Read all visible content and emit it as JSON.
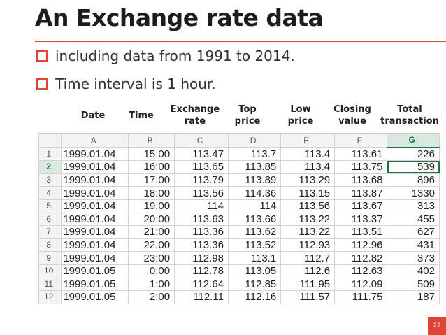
{
  "title": "An Exchange rate data",
  "bullets": [
    "including data from 1991 to 2014.",
    "Time interval is 1 hour."
  ],
  "column_headers": [
    {
      "label": "Date"
    },
    {
      "label": "Time"
    },
    {
      "label": "Exchange\nrate"
    },
    {
      "label": "Top\nprice"
    },
    {
      "label": "Low\nprice"
    },
    {
      "label": "Closing\nvalue"
    },
    {
      "label": "Total\ntransaction"
    }
  ],
  "sheet": {
    "column_letters": [
      "A",
      "B",
      "C",
      "D",
      "E",
      "F",
      "G"
    ],
    "selected_column": "G",
    "selected_row": 2,
    "rows": [
      {
        "n": "1",
        "cells": [
          "1999.01.04",
          "15:00",
          "113.47",
          "113.7",
          "113.4",
          "113.61",
          "226"
        ]
      },
      {
        "n": "2",
        "cells": [
          "1999.01.04",
          "16:00",
          "113.65",
          "113.85",
          "113.4",
          "113.75",
          "539"
        ]
      },
      {
        "n": "3",
        "cells": [
          "1999.01.04",
          "17:00",
          "113.79",
          "113.89",
          "113.29",
          "113.68",
          "896"
        ]
      },
      {
        "n": "4",
        "cells": [
          "1999.01.04",
          "18:00",
          "113.56",
          "114.36",
          "113.15",
          "113.87",
          "1330"
        ]
      },
      {
        "n": "5",
        "cells": [
          "1999.01.04",
          "19:00",
          "114",
          "114",
          "113.56",
          "113.67",
          "313"
        ]
      },
      {
        "n": "6",
        "cells": [
          "1999.01.04",
          "20:00",
          "113.63",
          "113.66",
          "113.22",
          "113.37",
          "455"
        ]
      },
      {
        "n": "7",
        "cells": [
          "1999.01.04",
          "21:00",
          "113.36",
          "113.62",
          "113.22",
          "113.51",
          "627"
        ]
      },
      {
        "n": "8",
        "cells": [
          "1999.01.04",
          "22:00",
          "113.36",
          "113.52",
          "112.93",
          "112.96",
          "431"
        ]
      },
      {
        "n": "9",
        "cells": [
          "1999.01.04",
          "23:00",
          "112.98",
          "113.1",
          "112.7",
          "112.82",
          "373"
        ]
      },
      {
        "n": "10",
        "cells": [
          "1999.01.05",
          "0:00",
          "112.78",
          "113.05",
          "112.6",
          "112.63",
          "402"
        ]
      },
      {
        "n": "11",
        "cells": [
          "1999.01.05",
          "1:00",
          "112.64",
          "112.85",
          "111.95",
          "112.09",
          "509"
        ]
      },
      {
        "n": "12",
        "cells": [
          "1999.01.05",
          "2:00",
          "112.11",
          "112.16",
          "111.57",
          "111.75",
          "187"
        ]
      }
    ]
  },
  "page_number": "22",
  "colors": {
    "accent": "#e04436",
    "selection": "#217346"
  }
}
